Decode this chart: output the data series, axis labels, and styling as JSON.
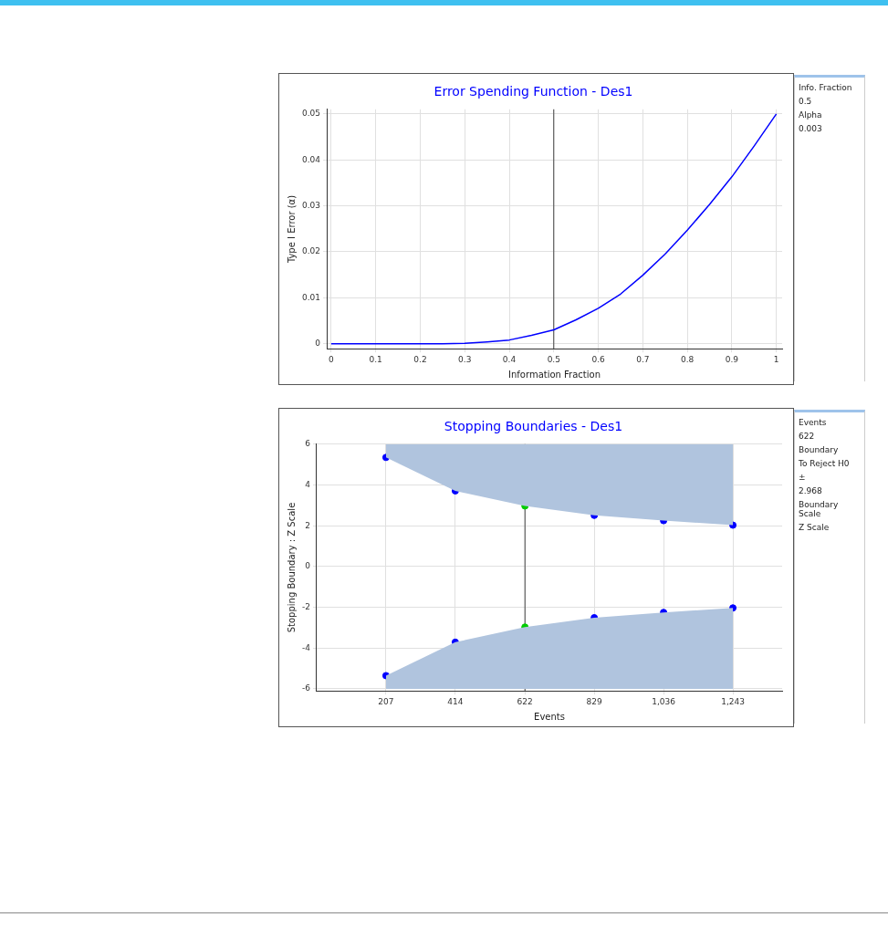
{
  "chart_data": [
    {
      "type": "line",
      "title": "Error Spending Function - Des1",
      "xlabel": "Information Fraction",
      "ylabel": "Type I Error (α)",
      "x": [
        0,
        0.05,
        0.1,
        0.15,
        0.2,
        0.25,
        0.3,
        0.35,
        0.4,
        0.45,
        0.5,
        0.55,
        0.6,
        0.65,
        0.7,
        0.75,
        0.8,
        0.85,
        0.9,
        0.95,
        1
      ],
      "series": [
        {
          "color": "#0000ff",
          "values": [
            0,
            0,
            0,
            0,
            0,
            0,
            0.0001,
            0.0004,
            0.0008,
            0.0018,
            0.003,
            0.0052,
            0.0077,
            0.0108,
            0.0149,
            0.0195,
            0.0247,
            0.0303,
            0.0363,
            0.043,
            0.05
          ]
        }
      ],
      "xlim": [
        -0.01,
        1.013
      ],
      "ylim": [
        -0.0011,
        0.051
      ],
      "xticks": [
        0,
        0.1,
        0.2,
        0.3,
        0.4,
        0.5,
        0.6,
        0.7,
        0.8,
        0.9,
        1
      ],
      "yticks": [
        0,
        0.01,
        0.02,
        0.03,
        0.04,
        0.05
      ],
      "ref_lines": [
        {
          "axis": "x",
          "value": 0.5,
          "color": "#404040"
        }
      ],
      "grid": true,
      "legend": false,
      "marker": "none",
      "line_style": "solid"
    },
    {
      "type": "other",
      "annotations": [
        "Info. Fraction",
        "0.5",
        "Alpha",
        "0.003"
      ]
    },
    {
      "type": "scatter",
      "title": "Stopping Boundaries - Des1",
      "xlabel": "Events",
      "ylabel": "Stopping Boundary : Z Scale",
      "x": [
        207,
        414,
        622,
        829,
        1036,
        1243
      ],
      "series": [
        {
          "color": "#b0c4de",
          "colors": [
            "#0000ff",
            "#0000ff",
            "#00cc00",
            "#0000ff",
            "#0000ff",
            "#0000ff"
          ],
          "values": [
            5.35,
            3.71,
            2.97,
            2.51,
            2.25,
            2.03
          ],
          "lower": [
            5.35,
            3.71,
            2.97,
            2.51,
            2.25,
            2.03
          ],
          "upper": [
            6,
            6,
            6,
            6,
            6,
            6
          ]
        },
        {
          "color": "#b0c4de",
          "colors": [
            "#0000ff",
            "#0000ff",
            "#00cc00",
            "#0000ff",
            "#0000ff",
            "#0000ff"
          ],
          "values": [
            -5.35,
            -3.71,
            -2.97,
            -2.51,
            -2.25,
            -2.03
          ],
          "lower": [
            -6,
            -6,
            -6,
            -6,
            -6,
            -6
          ],
          "upper": [
            -5.35,
            -3.71,
            -2.97,
            -2.51,
            -2.25,
            -2.03
          ]
        }
      ],
      "xlim": [
        0,
        1390
      ],
      "ylim": [
        -6.1,
        6
      ],
      "xticks": [
        207,
        414,
        622,
        829,
        {
          "value": 1036,
          "label": "1,036"
        },
        {
          "value": 1243,
          "label": "1,243"
        }
      ],
      "yticks": [
        -6,
        -4,
        -2,
        0,
        2,
        4,
        6
      ],
      "ref_lines": [
        {
          "axis": "x",
          "value": 622,
          "color": "#404040"
        }
      ],
      "grid": true,
      "legend": false,
      "marker": "circle"
    },
    {
      "type": "other",
      "annotations": [
        "Events",
        "622",
        "Boundary",
        "To Reject H0",
        "±",
        "2.968",
        "Boundary Scale",
        "Z Scale"
      ]
    }
  ]
}
